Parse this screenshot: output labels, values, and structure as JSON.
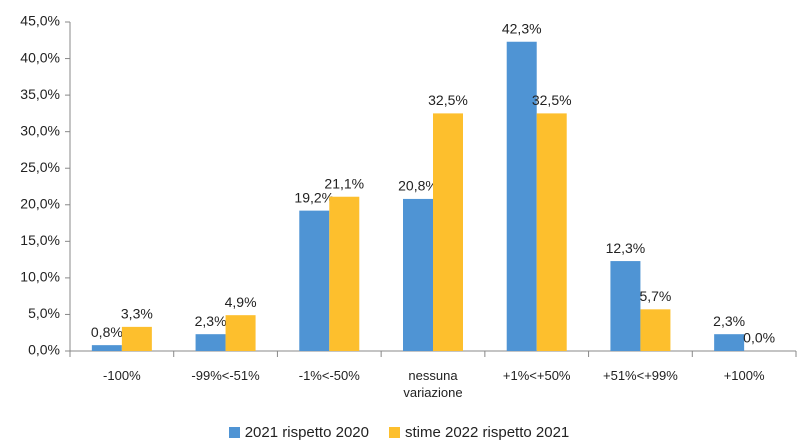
{
  "chart_data": {
    "type": "bar",
    "categories": [
      "-100%",
      "-99%<-51%",
      "-1%<-50%",
      "nessuna variazione",
      "+1%<+50%",
      "+51%<+99%",
      "+100%"
    ],
    "series": [
      {
        "name": "2021 rispetto 2020",
        "color": "#4f94d4",
        "values": [
          0.8,
          2.3,
          19.2,
          20.8,
          42.3,
          12.3,
          2.3
        ],
        "value_labels": [
          "0,8%",
          "2,3%",
          "19,2%",
          "20,8%",
          "42,3%",
          "12,3%",
          "2,3%"
        ]
      },
      {
        "name": "stime 2022 rispetto 2021",
        "color": "#fdbf2d",
        "values": [
          3.3,
          4.9,
          21.1,
          32.5,
          32.5,
          5.7,
          0.0
        ],
        "value_labels": [
          "3,3%",
          "4,9%",
          "21,1%",
          "32,5%",
          "32,5%",
          "5,7%",
          "0,0%"
        ]
      }
    ],
    "ylim": [
      0,
      45
    ],
    "yticks": [
      {
        "value": 0,
        "label": "0,0%"
      },
      {
        "value": 5,
        "label": "5,0%"
      },
      {
        "value": 10,
        "label": "10,0%"
      },
      {
        "value": 15,
        "label": "15,0%"
      },
      {
        "value": 20,
        "label": "20,0%"
      },
      {
        "value": 25,
        "label": "25,0%"
      },
      {
        "value": 30,
        "label": "30,0%"
      },
      {
        "value": 35,
        "label": "35,0%"
      },
      {
        "value": 40,
        "label": "40,0%"
      },
      {
        "value": 45,
        "label": "45,0%"
      }
    ],
    "grid": false,
    "legend": "bottom"
  }
}
